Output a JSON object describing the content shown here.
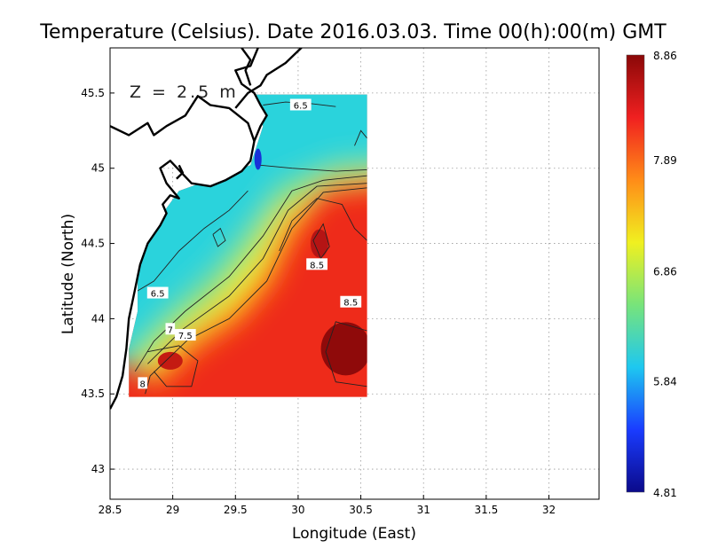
{
  "chart_data": {
    "type": "heatmap",
    "title": "Temperature (Celsius). Date 2016.03.03. Time 00(h):00(m)  GMT",
    "annotation": "Z = 2.5 m",
    "xlabel": "Longitude (East)",
    "ylabel": "Latitude (North)",
    "xlim": [
      28.5,
      32.4
    ],
    "ylim": [
      42.8,
      45.8
    ],
    "x_ticks": [
      28.5,
      29,
      29.5,
      30,
      30.5,
      31,
      31.5,
      32
    ],
    "x_tick_labels": [
      "28.5",
      "29",
      "29.5",
      "30",
      "30.5",
      "31",
      "31.5",
      "32"
    ],
    "y_ticks": [
      43,
      43.5,
      44,
      44.5,
      45,
      45.5
    ],
    "y_tick_labels": [
      "43",
      "43.5",
      "44",
      "44.5",
      "45",
      "45.5"
    ],
    "grid": "dotted",
    "data_extent": {
      "lon": [
        28.65,
        30.55
      ],
      "lat": [
        43.48,
        45.49
      ]
    },
    "colorbar": {
      "min": 4.81,
      "max": 8.86,
      "tick_labels": [
        "8.86",
        "7.89",
        "6.86",
        "5.84",
        "4.81"
      ],
      "tick_values": [
        8.86,
        7.89,
        6.86,
        5.84,
        4.81
      ],
      "colors": [
        "#0b0a8a",
        "#1a3cff",
        "#1ec8f0",
        "#78e47a",
        "#f0f020",
        "#ff8c18",
        "#f02020",
        "#8a0808"
      ]
    },
    "contour_labels": [
      {
        "text": "6.5",
        "lon": 30.02,
        "lat": 45.42
      },
      {
        "text": "8.5",
        "lon": 30.15,
        "lat": 44.36
      },
      {
        "text": "8.5",
        "lon": 30.42,
        "lat": 44.11
      },
      {
        "text": "6.5",
        "lon": 28.88,
        "lat": 44.17
      },
      {
        "text": "7",
        "lon": 28.98,
        "lat": 43.93
      },
      {
        "text": "7.5",
        "lon": 29.1,
        "lat": 43.89
      },
      {
        "text": "8",
        "lon": 28.76,
        "lat": 43.57
      }
    ]
  }
}
